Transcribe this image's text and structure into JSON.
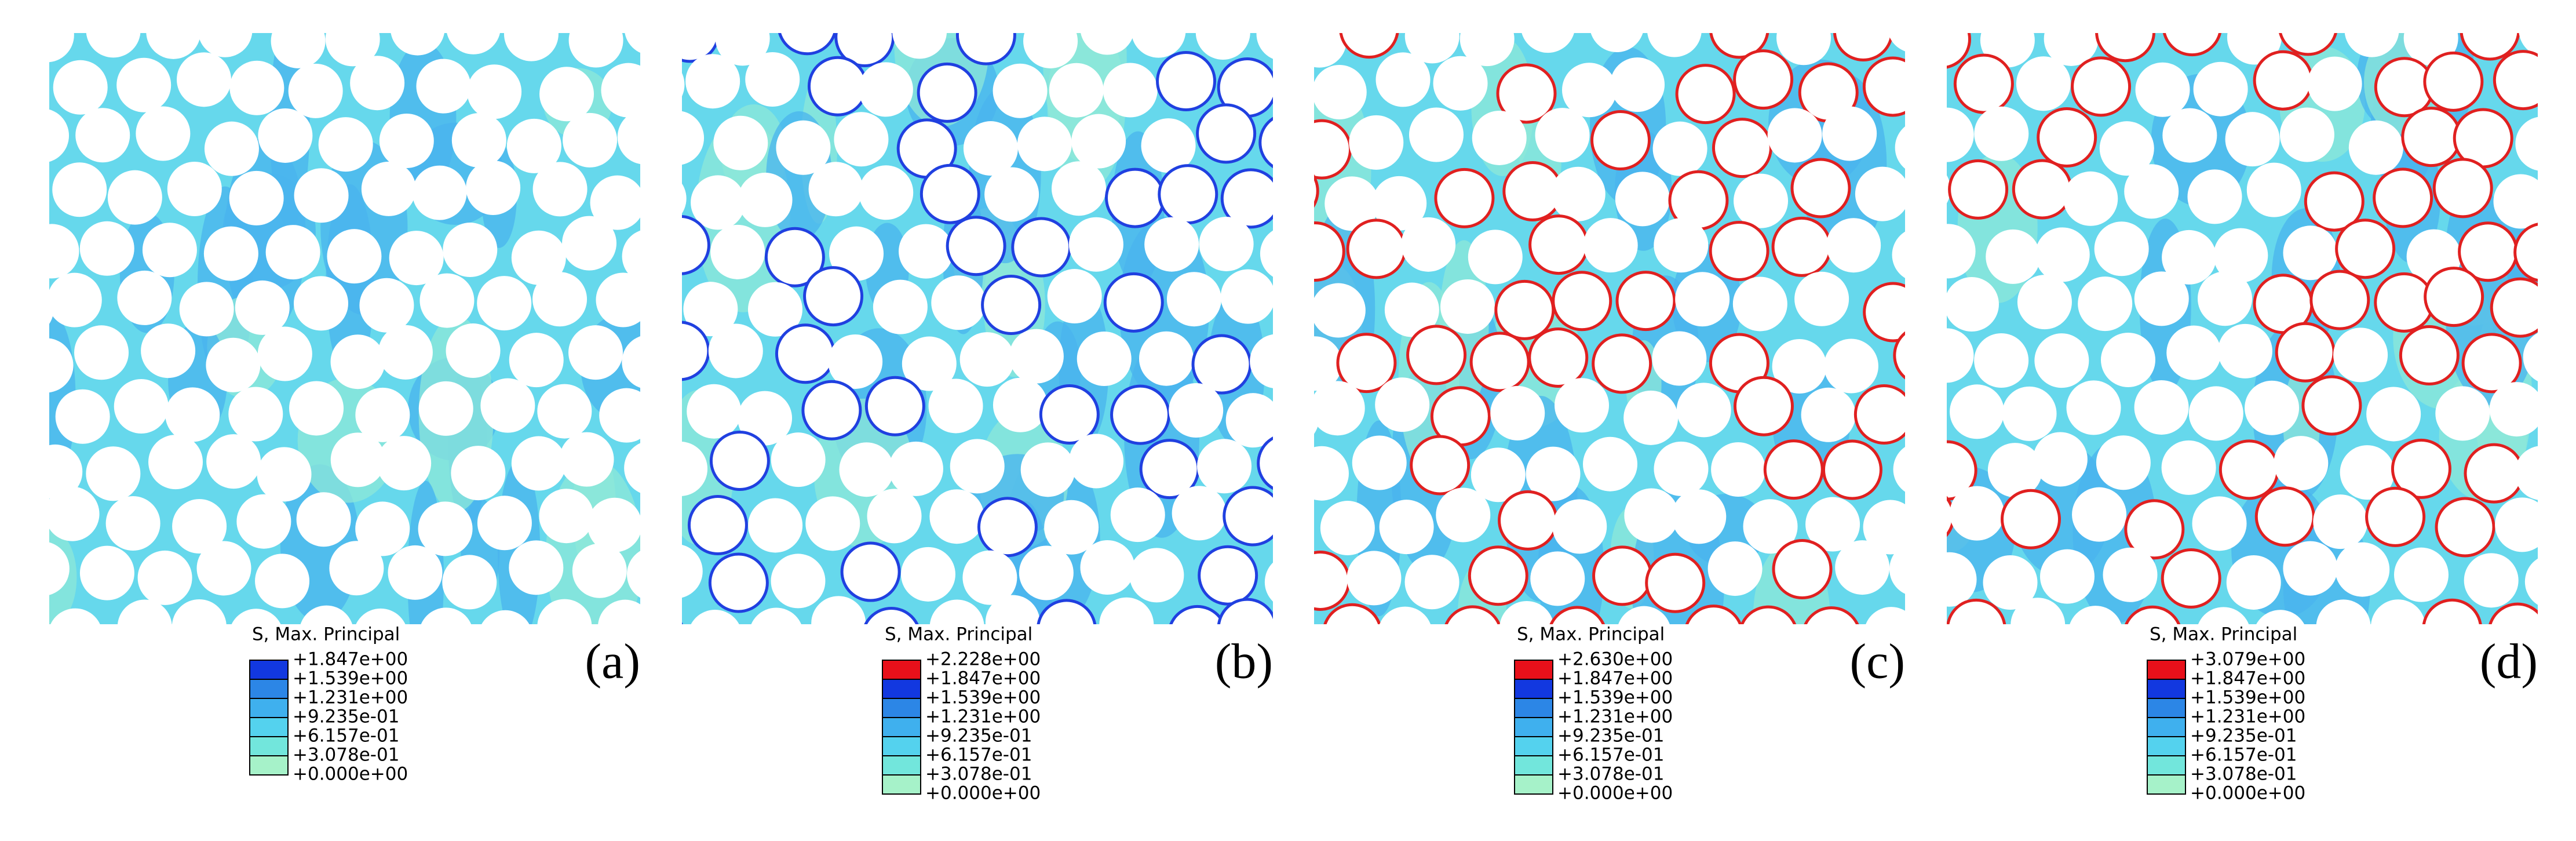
{
  "panels": [
    {
      "label": "(a)",
      "legend_title": "S, Max. Principal",
      "legend_labels": [
        "+1.847e+00",
        "+1.539e+00",
        "+1.231e+00",
        "+9.235e-01",
        "+6.157e-01",
        "+3.078e-01",
        "+0.000e+00"
      ]
    },
    {
      "label": "(b)",
      "legend_title": "S, Max. Principal",
      "legend_labels": [
        "+2.228e+00",
        "+1.847e+00",
        "+1.539e+00",
        "+1.231e+00",
        "+9.235e-01",
        "+6.157e-01",
        "+3.078e-01",
        "+0.000e+00"
      ]
    },
    {
      "label": "(c)",
      "legend_title": "S, Max. Principal",
      "legend_labels": [
        "+2.630e+00",
        "+1.847e+00",
        "+1.539e+00",
        "+1.231e+00",
        "+9.235e-01",
        "+6.157e-01",
        "+3.078e-01",
        "+0.000e+00"
      ]
    },
    {
      "label": "(d)",
      "legend_title": "S, Max. Principal",
      "legend_labels": [
        "+3.079e+00",
        "+1.847e+00",
        "+1.539e+00",
        "+1.231e+00",
        "+9.235e-01",
        "+6.157e-01",
        "+3.078e-01",
        "+0.000e+00"
      ]
    }
  ]
}
